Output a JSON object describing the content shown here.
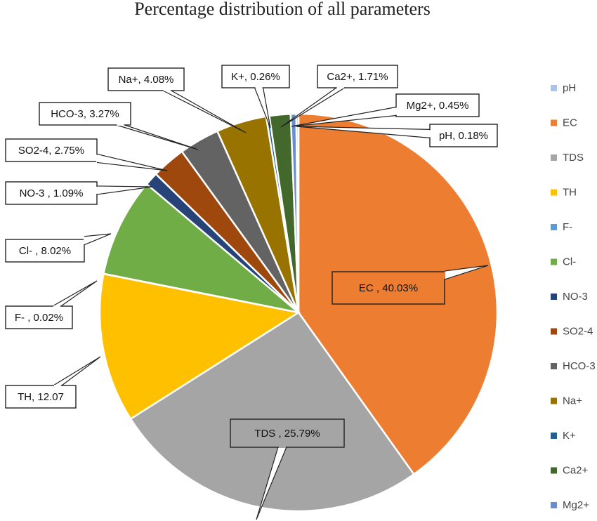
{
  "chart_data": {
    "type": "pie",
    "title": "Percentage distribution of all parameters",
    "slices": [
      {
        "key": "EC",
        "legend": "EC",
        "label": "EC , 40.03%",
        "value": 40.03,
        "color": "#ED7D31"
      },
      {
        "key": "TDS",
        "legend": "TDS",
        "label": "TDS , 25.79%",
        "value": 25.79,
        "color": "#A5A5A5"
      },
      {
        "key": "TH",
        "legend": "TH",
        "label": "TH, 12.07",
        "value": 12.07,
        "color": "#FFC000"
      },
      {
        "key": "F",
        "legend": "F-",
        "label": "F- , 0.02%",
        "value": 0.02,
        "color": "#5B9BD5"
      },
      {
        "key": "Cl",
        "legend": "Cl-",
        "label": "Cl- , 8.02%",
        "value": 8.02,
        "color": "#70AD47"
      },
      {
        "key": "NO3",
        "legend": "NO-3",
        "label": "NO-3 , 1.09%",
        "value": 1.09,
        "color": "#264478"
      },
      {
        "key": "SO24",
        "legend": "SO2-4",
        "label": "SO2-4, 2.75%",
        "value": 2.75,
        "color": "#9E480E"
      },
      {
        "key": "HCO3",
        "legend": "HCO-3",
        "label": "HCO-3, 3.27%",
        "value": 3.27,
        "color": "#636363"
      },
      {
        "key": "Na",
        "legend": "Na+",
        "label": "Na+, 4.08%",
        "value": 4.08,
        "color": "#997300"
      },
      {
        "key": "K",
        "legend": "K+",
        "label": "K+, 0.26%",
        "value": 0.26,
        "color": "#255E91"
      },
      {
        "key": "Ca2",
        "legend": "Ca2+",
        "label": "Ca2+, 1.71%",
        "value": 1.71,
        "color": "#43682B"
      },
      {
        "key": "Mg2",
        "legend": "Mg2+",
        "label": "Mg2+, 0.45%",
        "value": 0.45,
        "color": "#698ED0"
      },
      {
        "key": "pH",
        "legend": "pH",
        "label": "pH, 0.18%",
        "value": 0.18,
        "color": "#A9C4E8"
      }
    ],
    "legend_order": [
      "pH",
      "EC",
      "TDS",
      "TH",
      "F",
      "Cl",
      "NO3",
      "SO24",
      "HCO3",
      "Na",
      "K",
      "Ca2",
      "Mg2"
    ],
    "legend_position": "right"
  }
}
